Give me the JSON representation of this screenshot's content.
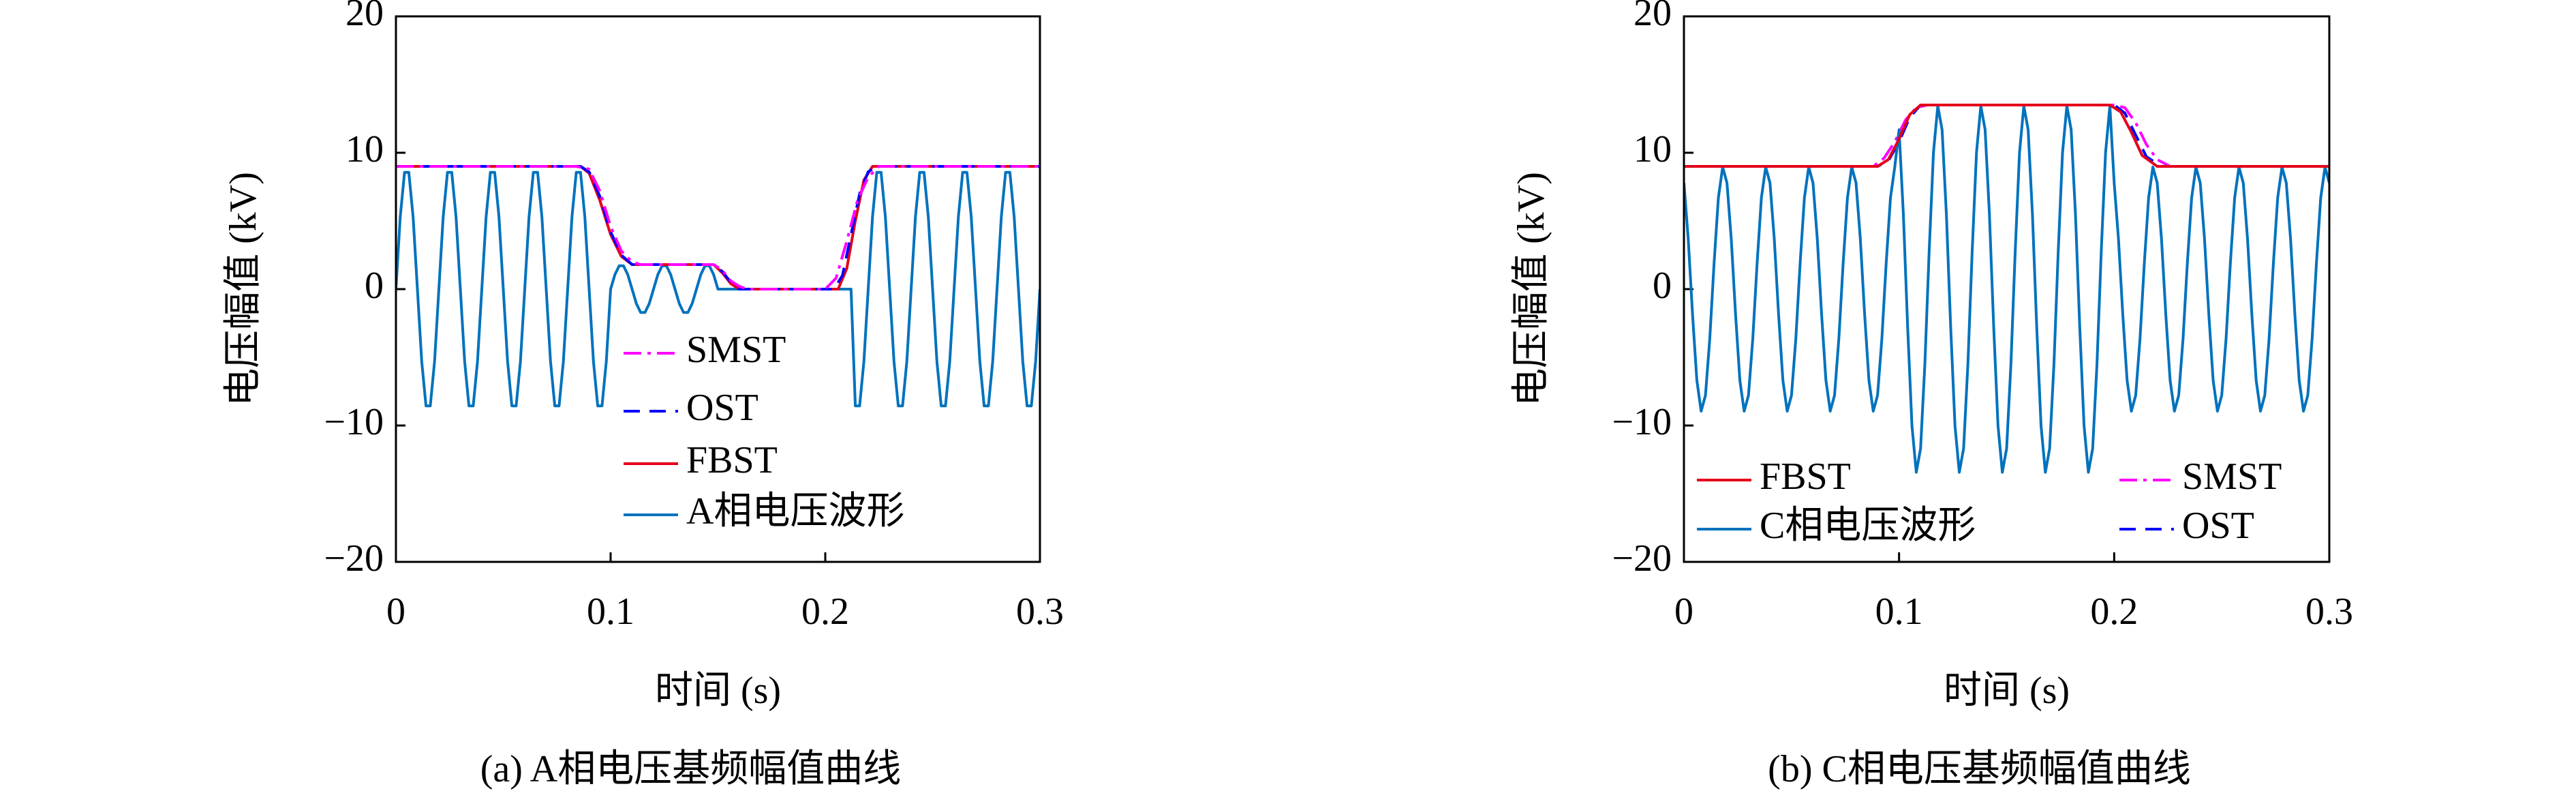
{
  "chart_data": [
    {
      "type": "line",
      "caption": "(a) A相电压基频幅值曲线",
      "xlabel": "时间 (s)",
      "ylabel": "电压幅值 (kV)",
      "xlim": [
        0,
        0.3
      ],
      "ylim": [
        -20,
        20
      ],
      "xticks": [
        0,
        0.1,
        0.2,
        0.3
      ],
      "yticks": [
        {
          "value": -20,
          "label": "−20"
        },
        {
          "value": -10,
          "label": "−10"
        },
        0,
        10,
        20
      ],
      "series": [
        {
          "name": "SMST",
          "color": "#ff00ff",
          "dash": "dashdot",
          "x": [
            0,
            0.084,
            0.09,
            0.095,
            0.1,
            0.105,
            0.11,
            0.114,
            0.148,
            0.152,
            0.156,
            0.16,
            0.164,
            0.2,
            0.205,
            0.21,
            0.215,
            0.22,
            0.225,
            0.3
          ],
          "values": [
            9,
            9,
            8.8,
            7.2,
            4.6,
            2.8,
            2,
            1.8,
            1.8,
            1.4,
            0.6,
            0.2,
            0,
            0,
            0.8,
            3.5,
            6.5,
            8.2,
            9,
            9
          ]
        },
        {
          "name": "OST",
          "color": "#0000ff",
          "dash": "dashed",
          "x": [
            0,
            0.086,
            0.09,
            0.095,
            0.1,
            0.105,
            0.11,
            0.148,
            0.152,
            0.156,
            0.16,
            0.204,
            0.208,
            0.212,
            0.216,
            0.22,
            0.224,
            0.3
          ],
          "values": [
            9,
            9,
            8.6,
            6.8,
            4.2,
            2.5,
            1.8,
            1.8,
            1.3,
            0.5,
            0,
            0,
            1,
            4,
            7,
            8.6,
            9,
            9
          ]
        },
        {
          "name": "FBST",
          "color": "#e3001b",
          "dash": "solid",
          "x": [
            0,
            0.086,
            0.09,
            0.095,
            0.1,
            0.105,
            0.11,
            0.148,
            0.152,
            0.156,
            0.16,
            0.206,
            0.21,
            0.214,
            0.218,
            0.222,
            0.3
          ],
          "values": [
            9,
            9,
            8.5,
            6.5,
            4,
            2.4,
            1.8,
            1.8,
            1.2,
            0.4,
            0,
            0,
            1.5,
            5,
            8,
            9,
            9
          ]
        },
        {
          "name": "A相电压波形",
          "color": "#0072bd",
          "dash": "solid",
          "x": [
            0,
            0.002,
            0.004,
            0.006,
            0.008,
            0.01,
            0.012,
            0.014,
            0.016,
            0.018,
            0.02,
            0.022,
            0.024,
            0.026,
            0.028,
            0.03,
            0.032,
            0.034,
            0.036,
            0.038,
            0.04,
            0.042,
            0.044,
            0.046,
            0.048,
            0.05,
            0.052,
            0.054,
            0.056,
            0.058,
            0.06,
            0.062,
            0.064,
            0.066,
            0.068,
            0.07,
            0.072,
            0.074,
            0.076,
            0.078,
            0.08,
            0.082,
            0.084,
            0.086,
            0.088,
            0.09,
            0.092,
            0.094,
            0.096,
            0.098,
            0.1,
            0.102,
            0.104,
            0.106,
            0.108,
            0.11,
            0.112,
            0.114,
            0.116,
            0.118,
            0.12,
            0.122,
            0.124,
            0.126,
            0.128,
            0.13,
            0.132,
            0.134,
            0.136,
            0.138,
            0.14,
            0.142,
            0.144,
            0.146,
            0.148,
            0.15,
            0.152,
            0.154,
            0.156,
            0.158,
            0.16,
            0.162,
            0.164,
            0.166,
            0.168,
            0.17,
            0.172,
            0.174,
            0.176,
            0.178,
            0.18,
            0.182,
            0.184,
            0.186,
            0.188,
            0.19,
            0.192,
            0.194,
            0.196,
            0.198,
            0.2,
            0.202,
            0.204,
            0.206,
            0.208,
            0.21,
            0.212,
            0.214,
            0.216,
            0.218,
            0.22,
            0.222,
            0.224,
            0.226,
            0.228,
            0.23,
            0.232,
            0.234,
            0.236,
            0.238,
            0.24,
            0.242,
            0.244,
            0.246,
            0.248,
            0.25,
            0.252,
            0.254,
            0.256,
            0.258,
            0.26,
            0.262,
            0.264,
            0.266,
            0.268,
            0.27,
            0.272,
            0.274,
            0.276,
            0.278,
            0.28,
            0.282,
            0.284,
            0.286,
            0.288,
            0.29,
            0.292,
            0.294,
            0.296,
            0.298,
            0.3
          ],
          "values": [
            0,
            5.29,
            8.56,
            8.56,
            5.29,
            0,
            -5.29,
            -8.56,
            -8.56,
            -5.29,
            0,
            5.29,
            8.56,
            8.56,
            5.29,
            0,
            -5.29,
            -8.56,
            -8.56,
            -5.29,
            0,
            5.29,
            8.56,
            8.56,
            5.29,
            0,
            -5.29,
            -8.56,
            -8.56,
            -5.29,
            0,
            5.29,
            8.56,
            8.56,
            5.29,
            0,
            -5.29,
            -8.56,
            -8.56,
            -5.29,
            0,
            5.29,
            8.56,
            8.56,
            5.29,
            0,
            -5.29,
            -8.56,
            -8.56,
            -5.29,
            0,
            1.06,
            1.71,
            1.71,
            1.06,
            0,
            -1.06,
            -1.71,
            -1.71,
            -1.06,
            0,
            1.06,
            1.71,
            1.71,
            1.06,
            0,
            -1.06,
            -1.71,
            -1.71,
            -1.06,
            0,
            1.06,
            1.71,
            1.71,
            1.06,
            0,
            0,
            0,
            0,
            0,
            0,
            0,
            0,
            0,
            0,
            0,
            0,
            0,
            0,
            0,
            0,
            0,
            0,
            0,
            0,
            0,
            0,
            0,
            0,
            0,
            0,
            0,
            0,
            0,
            0,
            0,
            0,
            -8.56,
            -8.56,
            -5.29,
            0,
            5.29,
            8.56,
            8.56,
            5.29,
            0,
            -5.29,
            -8.56,
            -8.56,
            -5.29,
            0,
            5.29,
            8.56,
            8.56,
            5.29,
            0,
            -5.29,
            -8.56,
            -8.56,
            -5.29,
            0,
            5.29,
            8.56,
            8.56,
            5.29,
            0,
            -5.29,
            -8.56,
            -8.56,
            -5.29,
            0,
            5.29,
            8.56,
            8.56,
            5.29,
            0,
            -5.29,
            -8.56,
            -8.56,
            -5.29,
            0
          ]
        }
      ]
    },
    {
      "type": "line",
      "caption": "(b) C相电压基频幅值曲线",
      "xlabel": "时间 (s)",
      "ylabel": "电压幅值 (kV)",
      "xlim": [
        0,
        0.3
      ],
      "ylim": [
        -20,
        20
      ],
      "xticks": [
        0,
        0.1,
        0.2,
        0.3
      ],
      "yticks": [
        {
          "value": -20,
          "label": "−20"
        },
        {
          "value": -10,
          "label": "−10"
        },
        0,
        10,
        20
      ],
      "series": [
        {
          "name": "FBST",
          "color": "#e3001b",
          "dash": "solid",
          "x": [
            0,
            0.09,
            0.095,
            0.1,
            0.105,
            0.11,
            0.198,
            0.203,
            0.208,
            0.213,
            0.22,
            0.3
          ],
          "values": [
            9,
            9,
            9.5,
            11,
            12.8,
            13.5,
            13.5,
            13,
            11.5,
            9.8,
            9,
            9
          ]
        },
        {
          "name": "C相电压波形",
          "color": "#0072bd",
          "dash": "solid",
          "x": [
            0,
            0.002,
            0.004,
            0.006,
            0.008,
            0.01,
            0.012,
            0.014,
            0.016,
            0.018,
            0.02,
            0.022,
            0.024,
            0.026,
            0.028,
            0.03,
            0.032,
            0.034,
            0.036,
            0.038,
            0.04,
            0.042,
            0.044,
            0.046,
            0.048,
            0.05,
            0.052,
            0.054,
            0.056,
            0.058,
            0.06,
            0.062,
            0.064,
            0.066,
            0.068,
            0.07,
            0.072,
            0.074,
            0.076,
            0.078,
            0.08,
            0.082,
            0.084,
            0.086,
            0.088,
            0.09,
            0.092,
            0.094,
            0.096,
            0.098,
            0.1,
            0.102,
            0.104,
            0.106,
            0.108,
            0.11,
            0.112,
            0.114,
            0.116,
            0.118,
            0.12,
            0.122,
            0.124,
            0.126,
            0.128,
            0.13,
            0.132,
            0.134,
            0.136,
            0.138,
            0.14,
            0.142,
            0.144,
            0.146,
            0.148,
            0.15,
            0.152,
            0.154,
            0.156,
            0.158,
            0.16,
            0.162,
            0.164,
            0.166,
            0.168,
            0.17,
            0.172,
            0.174,
            0.176,
            0.178,
            0.18,
            0.182,
            0.184,
            0.186,
            0.188,
            0.19,
            0.192,
            0.194,
            0.196,
            0.198,
            0.2,
            0.202,
            0.204,
            0.206,
            0.208,
            0.21,
            0.212,
            0.214,
            0.216,
            0.218,
            0.22,
            0.222,
            0.224,
            0.226,
            0.228,
            0.23,
            0.232,
            0.234,
            0.236,
            0.238,
            0.24,
            0.242,
            0.244,
            0.246,
            0.248,
            0.25,
            0.252,
            0.254,
            0.256,
            0.258,
            0.26,
            0.262,
            0.264,
            0.266,
            0.268,
            0.27,
            0.272,
            0.274,
            0.276,
            0.278,
            0.28,
            0.282,
            0.284,
            0.286,
            0.288,
            0.29,
            0.292,
            0.294,
            0.296,
            0.298,
            0.3
          ],
          "values": [
            7.79,
            3.66,
            -1.87,
            -6.69,
            -8.95,
            -7.79,
            -3.66,
            1.87,
            6.69,
            8.95,
            7.79,
            3.66,
            -1.87,
            -6.69,
            -8.95,
            -7.79,
            -3.66,
            1.87,
            6.69,
            8.95,
            7.79,
            3.66,
            -1.87,
            -6.69,
            -8.95,
            -7.79,
            -3.66,
            1.87,
            6.69,
            8.95,
            7.79,
            3.66,
            -1.87,
            -6.69,
            -8.95,
            -7.79,
            -3.66,
            1.87,
            6.69,
            8.95,
            7.79,
            3.66,
            -1.87,
            -6.69,
            -8.95,
            -7.79,
            -3.66,
            1.87,
            6.69,
            8.95,
            11.69,
            5.49,
            -2.81,
            -10.03,
            -13.43,
            -11.69,
            -5.49,
            2.81,
            10.03,
            13.43,
            11.69,
            5.49,
            -2.81,
            -10.03,
            -13.43,
            -11.69,
            -5.49,
            2.81,
            10.03,
            13.43,
            11.69,
            5.49,
            -2.81,
            -10.03,
            -13.43,
            -11.69,
            -5.49,
            2.81,
            10.03,
            13.43,
            11.69,
            5.49,
            -2.81,
            -10.03,
            -13.43,
            -11.69,
            -5.49,
            2.81,
            10.03,
            13.43,
            11.69,
            5.49,
            -2.81,
            -10.03,
            -13.43,
            -11.69,
            -5.49,
            2.81,
            10.03,
            13.43,
            7.79,
            3.66,
            -1.87,
            -6.69,
            -8.95,
            -7.79,
            -3.66,
            1.87,
            6.69,
            8.95,
            7.79,
            3.66,
            -1.87,
            -6.69,
            -8.95,
            -7.79,
            -3.66,
            1.87,
            6.69,
            8.95,
            7.79,
            3.66,
            -1.87,
            -6.69,
            -8.95,
            -7.79,
            -3.66,
            1.87,
            6.69,
            8.95,
            7.79,
            3.66,
            -1.87,
            -6.69,
            -8.95,
            -7.79,
            -3.66,
            1.87,
            6.69,
            8.95,
            7.79,
            3.66,
            -1.87,
            -6.69,
            -8.95,
            -7.79,
            -3.66,
            1.87,
            6.69,
            8.95,
            7.79
          ]
        },
        {
          "name": "SMST",
          "color": "#ff00ff",
          "dash": "dashdot",
          "x": [
            0,
            0.088,
            0.093,
            0.098,
            0.103,
            0.108,
            0.113,
            0.2,
            0.205,
            0.21,
            0.215,
            0.22,
            0.226,
            0.3
          ],
          "values": [
            9,
            9,
            9.6,
            10.8,
            12.4,
            13.3,
            13.5,
            13.5,
            13.3,
            12.2,
            10.6,
            9.5,
            9,
            9
          ]
        },
        {
          "name": "OST",
          "color": "#0000ff",
          "dash": "dashed",
          "x": [
            0,
            0.09,
            0.095,
            0.1,
            0.105,
            0.11,
            0.2,
            0.205,
            0.21,
            0.215,
            0.222,
            0.3
          ],
          "values": [
            9,
            9,
            9.4,
            10.8,
            12.6,
            13.5,
            13.5,
            12.9,
            11.3,
            9.7,
            9,
            9
          ]
        }
      ]
    }
  ]
}
